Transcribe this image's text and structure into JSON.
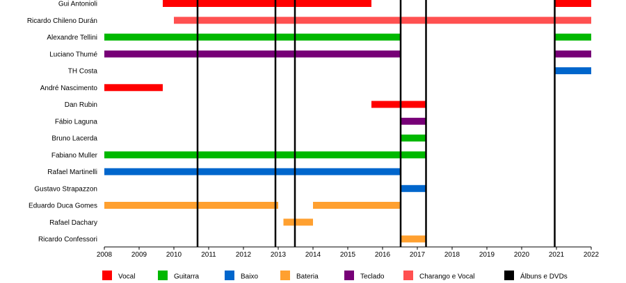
{
  "chart_data": {
    "type": "timeline",
    "title": "",
    "xlim": [
      2008,
      2022
    ],
    "x_ticks": [
      "2008",
      "2009",
      "2010",
      "2011",
      "2012",
      "2013",
      "2014",
      "2015",
      "2016",
      "2017",
      "2018",
      "2019",
      "2020",
      "2021",
      "2022"
    ],
    "members": [
      "Gui Antonioli",
      "Ricardo Chileno Durán",
      "Alexandre Tellini",
      "Luciano Thumé",
      "TH Costa",
      "André Nascimento",
      "Dan Rubin",
      "Fábio Laguna",
      "Bruno Lacerda",
      "Fabiano Muller",
      "Rafael Martinelli",
      "Gustavo Strapazzon",
      "Eduardo Duca Gomes",
      "Rafael Dachary",
      "Ricardo Confessori"
    ],
    "roles": [
      {
        "key": "vocal",
        "label": "Vocal",
        "color": "#ff0000"
      },
      {
        "key": "guitarra",
        "label": "Guitarra",
        "color": "#00b800"
      },
      {
        "key": "baixo",
        "label": "Baixo",
        "color": "#0066cc"
      },
      {
        "key": "bateria",
        "label": "Bateria",
        "color": "#ffa030"
      },
      {
        "key": "teclado",
        "label": "Teclado",
        "color": "#770077"
      },
      {
        "key": "charango",
        "label": "Charango e Vocal",
        "color": "#ff5050"
      },
      {
        "key": "albuns",
        "label": "Álbuns e DVDs",
        "color": "#000000"
      }
    ],
    "spans": [
      {
        "member": 0,
        "role": "vocal",
        "start": 2009.68,
        "end": 2015.68
      },
      {
        "member": 0,
        "role": "vocal",
        "start": 2020.95,
        "end": 2022.0
      },
      {
        "member": 1,
        "role": "charango",
        "start": 2010.0,
        "end": 2022.0
      },
      {
        "member": 2,
        "role": "guitarra",
        "start": 2008.0,
        "end": 2016.52
      },
      {
        "member": 2,
        "role": "guitarra",
        "start": 2020.95,
        "end": 2022.0
      },
      {
        "member": 3,
        "role": "teclado",
        "start": 2008.0,
        "end": 2016.52
      },
      {
        "member": 3,
        "role": "teclado",
        "start": 2020.95,
        "end": 2022.0
      },
      {
        "member": 4,
        "role": "baixo",
        "start": 2020.95,
        "end": 2022.0
      },
      {
        "member": 5,
        "role": "vocal",
        "start": 2008.0,
        "end": 2009.68
      },
      {
        "member": 6,
        "role": "vocal",
        "start": 2015.68,
        "end": 2017.25
      },
      {
        "member": 7,
        "role": "teclado",
        "start": 2016.52,
        "end": 2017.25
      },
      {
        "member": 8,
        "role": "guitarra",
        "start": 2016.52,
        "end": 2017.25
      },
      {
        "member": 9,
        "role": "guitarra",
        "start": 2008.0,
        "end": 2017.25
      },
      {
        "member": 10,
        "role": "baixo",
        "start": 2008.0,
        "end": 2016.52
      },
      {
        "member": 11,
        "role": "baixo",
        "start": 2016.52,
        "end": 2017.25
      },
      {
        "member": 12,
        "role": "bateria",
        "start": 2008.0,
        "end": 2013.0
      },
      {
        "member": 12,
        "role": "bateria",
        "start": 2014.0,
        "end": 2016.52
      },
      {
        "member": 13,
        "role": "bateria",
        "start": 2013.15,
        "end": 2014.0
      },
      {
        "member": 14,
        "role": "bateria",
        "start": 2016.52,
        "end": 2017.25
      }
    ],
    "album_lines": [
      2010.68,
      2012.92,
      2013.48,
      2016.52,
      2017.25,
      2020.95
    ]
  }
}
